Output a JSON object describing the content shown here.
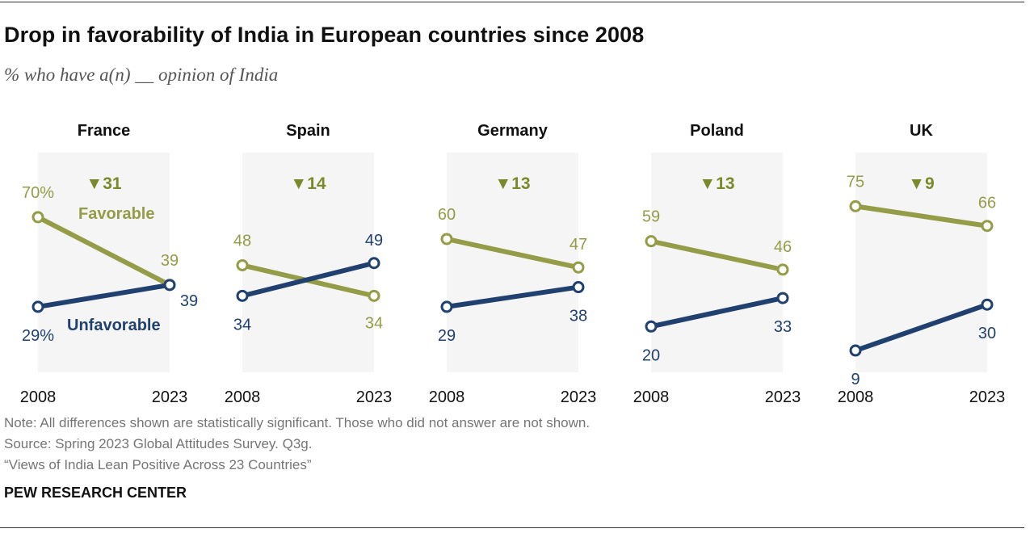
{
  "title": "Drop in favorability of India in European countries since 2008",
  "subtitle": "% who have a(n) __ opinion of India",
  "chart_data": {
    "type": "line",
    "x": [
      "2008",
      "2023"
    ],
    "ylim": [
      0,
      100
    ],
    "grid": false,
    "legend": "inline labels in first panel",
    "series_labels": {
      "favorable": "Favorable",
      "unfavorable": "Unfavorable"
    },
    "colors": {
      "favorable": "#959c47",
      "unfavorable": "#20416f",
      "panel_bg": "#f5f5f5",
      "change_text": "#7a8a2a"
    },
    "panels": [
      {
        "country": "France",
        "favorable": [
          70,
          39
        ],
        "unfavorable": [
          29,
          39
        ],
        "change": "▼31",
        "labels": {
          "fav": [
            "70%",
            "39"
          ],
          "unfav": [
            "29%",
            "39"
          ]
        }
      },
      {
        "country": "Spain",
        "favorable": [
          48,
          34
        ],
        "unfavorable": [
          34,
          49
        ],
        "change": "▼14",
        "labels": {
          "fav": [
            "48",
            "34"
          ],
          "unfav": [
            "34",
            "49"
          ]
        }
      },
      {
        "country": "Germany",
        "favorable": [
          60,
          47
        ],
        "unfavorable": [
          29,
          38
        ],
        "change": "▼13",
        "labels": {
          "fav": [
            "60",
            "47"
          ],
          "unfav": [
            "29",
            "38"
          ]
        }
      },
      {
        "country": "Poland",
        "favorable": [
          59,
          46
        ],
        "unfavorable": [
          20,
          33
        ],
        "change": "▼13",
        "labels": {
          "fav": [
            "59",
            "46"
          ],
          "unfav": [
            "20",
            "33"
          ]
        }
      },
      {
        "country": "UK",
        "favorable": [
          75,
          66
        ],
        "unfavorable": [
          9,
          30
        ],
        "change": "▼9",
        "labels": {
          "fav": [
            "75",
            "66"
          ],
          "unfav": [
            "9",
            "30"
          ]
        }
      }
    ]
  },
  "notes": {
    "note": "Note: All differences shown are statistically significant. Those who did not answer are not shown.",
    "source": "Source: Spring 2023 Global Attitudes Survey. Q3g.",
    "report": "“Views of India Lean Positive Across 23 Countries”"
  },
  "brand": "PEW RESEARCH CENTER"
}
